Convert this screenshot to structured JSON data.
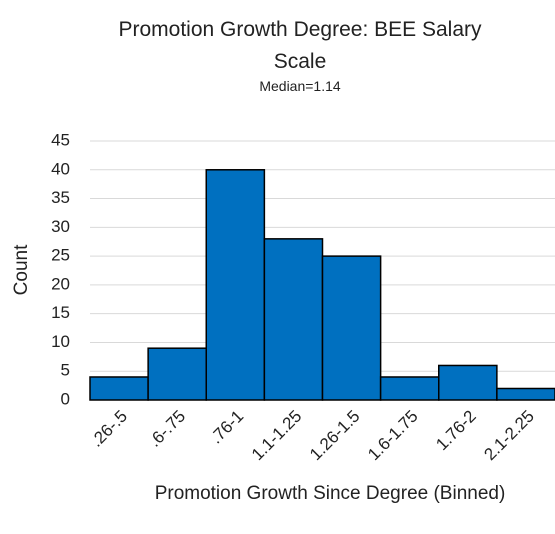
{
  "chart_data": {
    "type": "bar",
    "title": "Promotion Growth Degree: BEE Salary Scale",
    "subtitle": "Median=1.14",
    "x_label": "Promotion Growth Since Degree (Binned)",
    "y_label": "Count",
    "categories": [
      ".26-.5",
      ".6-.75",
      ".76-1",
      "1.1-1.25",
      "1.26-1.5",
      "1.6-1.75",
      "1.76-2",
      "2.1-2.25"
    ],
    "values": [
      4,
      9,
      40,
      28,
      25,
      4,
      6,
      2
    ],
    "color": "#0070c0",
    "ylim": [
      0,
      45
    ],
    "yticks": [
      0,
      5,
      10,
      15,
      20,
      25,
      30,
      35,
      40,
      45
    ],
    "grid": true
  }
}
